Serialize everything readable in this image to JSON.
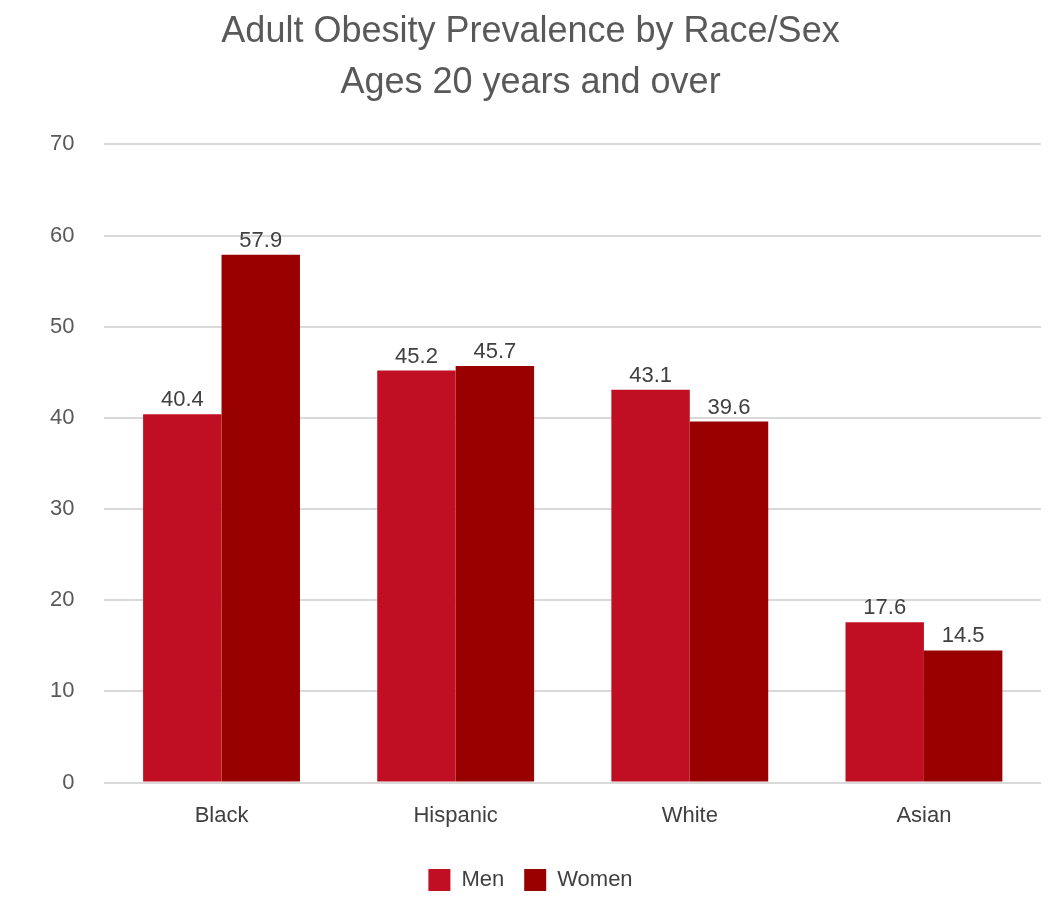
{
  "chart_data": {
    "type": "bar",
    "title": "Adult Obesity Prevalence by Race/Sex",
    "subtitle": "Ages 20 years and over",
    "categories": [
      "Black",
      "Hispanic",
      "White",
      "Asian"
    ],
    "series": [
      {
        "name": "Men",
        "color": "#c00f23",
        "values": [
          40.4,
          45.2,
          43.1,
          17.6
        ]
      },
      {
        "name": "Women",
        "color": "#990000",
        "values": [
          57.9,
          45.7,
          39.6,
          14.5
        ]
      }
    ],
    "ylim": [
      0,
      70
    ],
    "yticks": [
      0,
      10,
      20,
      30,
      40,
      50,
      60,
      70
    ],
    "grid": "y",
    "legend": "bottom",
    "data_labels": true
  }
}
